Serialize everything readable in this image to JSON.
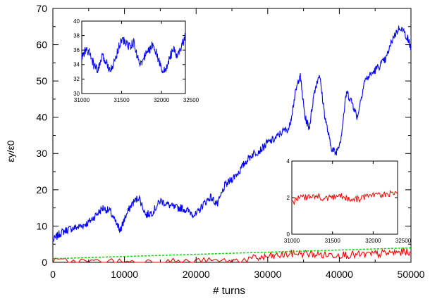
{
  "chart_data": [
    {
      "type": "line",
      "title": "",
      "xlabel": "# turns",
      "ylabel": "εy/ε0",
      "xlim": [
        0,
        50000
      ],
      "ylim": [
        0,
        70
      ],
      "xticks": [
        "0",
        "10000",
        "20000",
        "30000",
        "40000",
        "50000"
      ],
      "yticks": [
        "0",
        "10",
        "20",
        "30",
        "40",
        "50",
        "60",
        "70"
      ],
      "grid": false,
      "legend": "none",
      "series": [
        {
          "color": "#0000ff",
          "x": [
            0,
            1000,
            2000,
            3000,
            4000,
            5000,
            6000,
            7000,
            8000,
            9000,
            9500,
            10000,
            11000,
            12000,
            13000,
            14000,
            15000,
            16000,
            17000,
            18000,
            19000,
            20000,
            21000,
            22000,
            23000,
            24000,
            25000,
            26000,
            27000,
            28000,
            29000,
            30000,
            31000,
            32000,
            33000,
            33800,
            34500,
            35200,
            35800,
            36500,
            37200,
            38000,
            38800,
            39500,
            40200,
            41000,
            41800,
            42500,
            43500,
            44500,
            45500,
            46500,
            47500,
            48500,
            49500,
            50000
          ],
          "y": [
            6,
            8,
            9,
            9.5,
            10,
            11,
            13,
            15,
            14,
            10,
            9,
            12,
            16,
            18,
            13,
            14,
            17,
            16,
            15,
            15,
            14,
            13,
            16,
            18,
            16,
            21,
            23,
            25,
            28,
            30,
            31,
            33,
            34,
            36,
            37,
            46,
            52,
            40,
            37,
            47,
            52,
            40,
            32,
            30,
            34,
            47,
            44,
            40,
            50,
            52,
            54,
            56,
            62,
            65,
            62,
            59
          ]
        },
        {
          "color": "#ff0000",
          "x": [
            0,
            5000,
            10000,
            15000,
            20000,
            25000,
            28000,
            30000,
            32000,
            34000,
            36000,
            38000,
            40000,
            42000,
            44000,
            46000,
            48000,
            50000
          ],
          "y": [
            0.2,
            0.1,
            0.1,
            0.1,
            0.2,
            0.3,
            1.0,
            1.5,
            2.0,
            2.5,
            2.3,
            2.0,
            2.2,
            2.0,
            2.1,
            2.4,
            2.7,
            3.0
          ]
        },
        {
          "color": "#00dd00",
          "style": "dashed",
          "x": [
            0,
            50000
          ],
          "y": [
            1.0,
            4.0
          ]
        }
      ]
    },
    {
      "type": "line",
      "title": "",
      "xlabel": "",
      "ylabel": "",
      "xlim": [
        31000,
        32300
      ],
      "ylim": [
        30,
        40
      ],
      "xticks": [
        "31000",
        "31500",
        "32000",
        "32500"
      ],
      "yticks": [
        "30",
        "32",
        "34",
        "36",
        "38",
        "40"
      ],
      "series": [
        {
          "color": "#0000ff",
          "x": [
            31000,
            31050,
            31100,
            31150,
            31200,
            31250,
            31300,
            31350,
            31400,
            31450,
            31500,
            31550,
            31600,
            31650,
            31700,
            31750,
            31800,
            31850,
            31900,
            31950,
            32000,
            32050,
            32100,
            32150,
            32200,
            32250,
            32300
          ],
          "y": [
            35,
            36,
            35.5,
            34,
            33,
            35,
            34.5,
            33.5,
            34,
            36,
            37.5,
            37,
            36.5,
            37,
            35,
            34,
            35.5,
            36,
            37,
            35,
            33.5,
            33,
            35,
            36,
            35,
            36.5,
            38
          ]
        }
      ]
    },
    {
      "type": "line",
      "title": "",
      "xlabel": "",
      "ylabel": "",
      "xlim": [
        31000,
        32300
      ],
      "ylim": [
        0,
        4
      ],
      "xticks": [
        "31000",
        "31500",
        "32000",
        "32500"
      ],
      "yticks": [
        "0",
        "2",
        "4"
      ],
      "series": [
        {
          "color": "#ff0000",
          "x": [
            31000,
            31100,
            31200,
            31300,
            31400,
            31500,
            31600,
            31700,
            31800,
            31900,
            32000,
            32100,
            32200,
            32300
          ],
          "y": [
            1.7,
            2.0,
            2.0,
            2.1,
            1.9,
            2.0,
            2.1,
            1.9,
            1.9,
            2.0,
            2.1,
            2.1,
            2.2,
            2.2
          ]
        }
      ]
    }
  ]
}
